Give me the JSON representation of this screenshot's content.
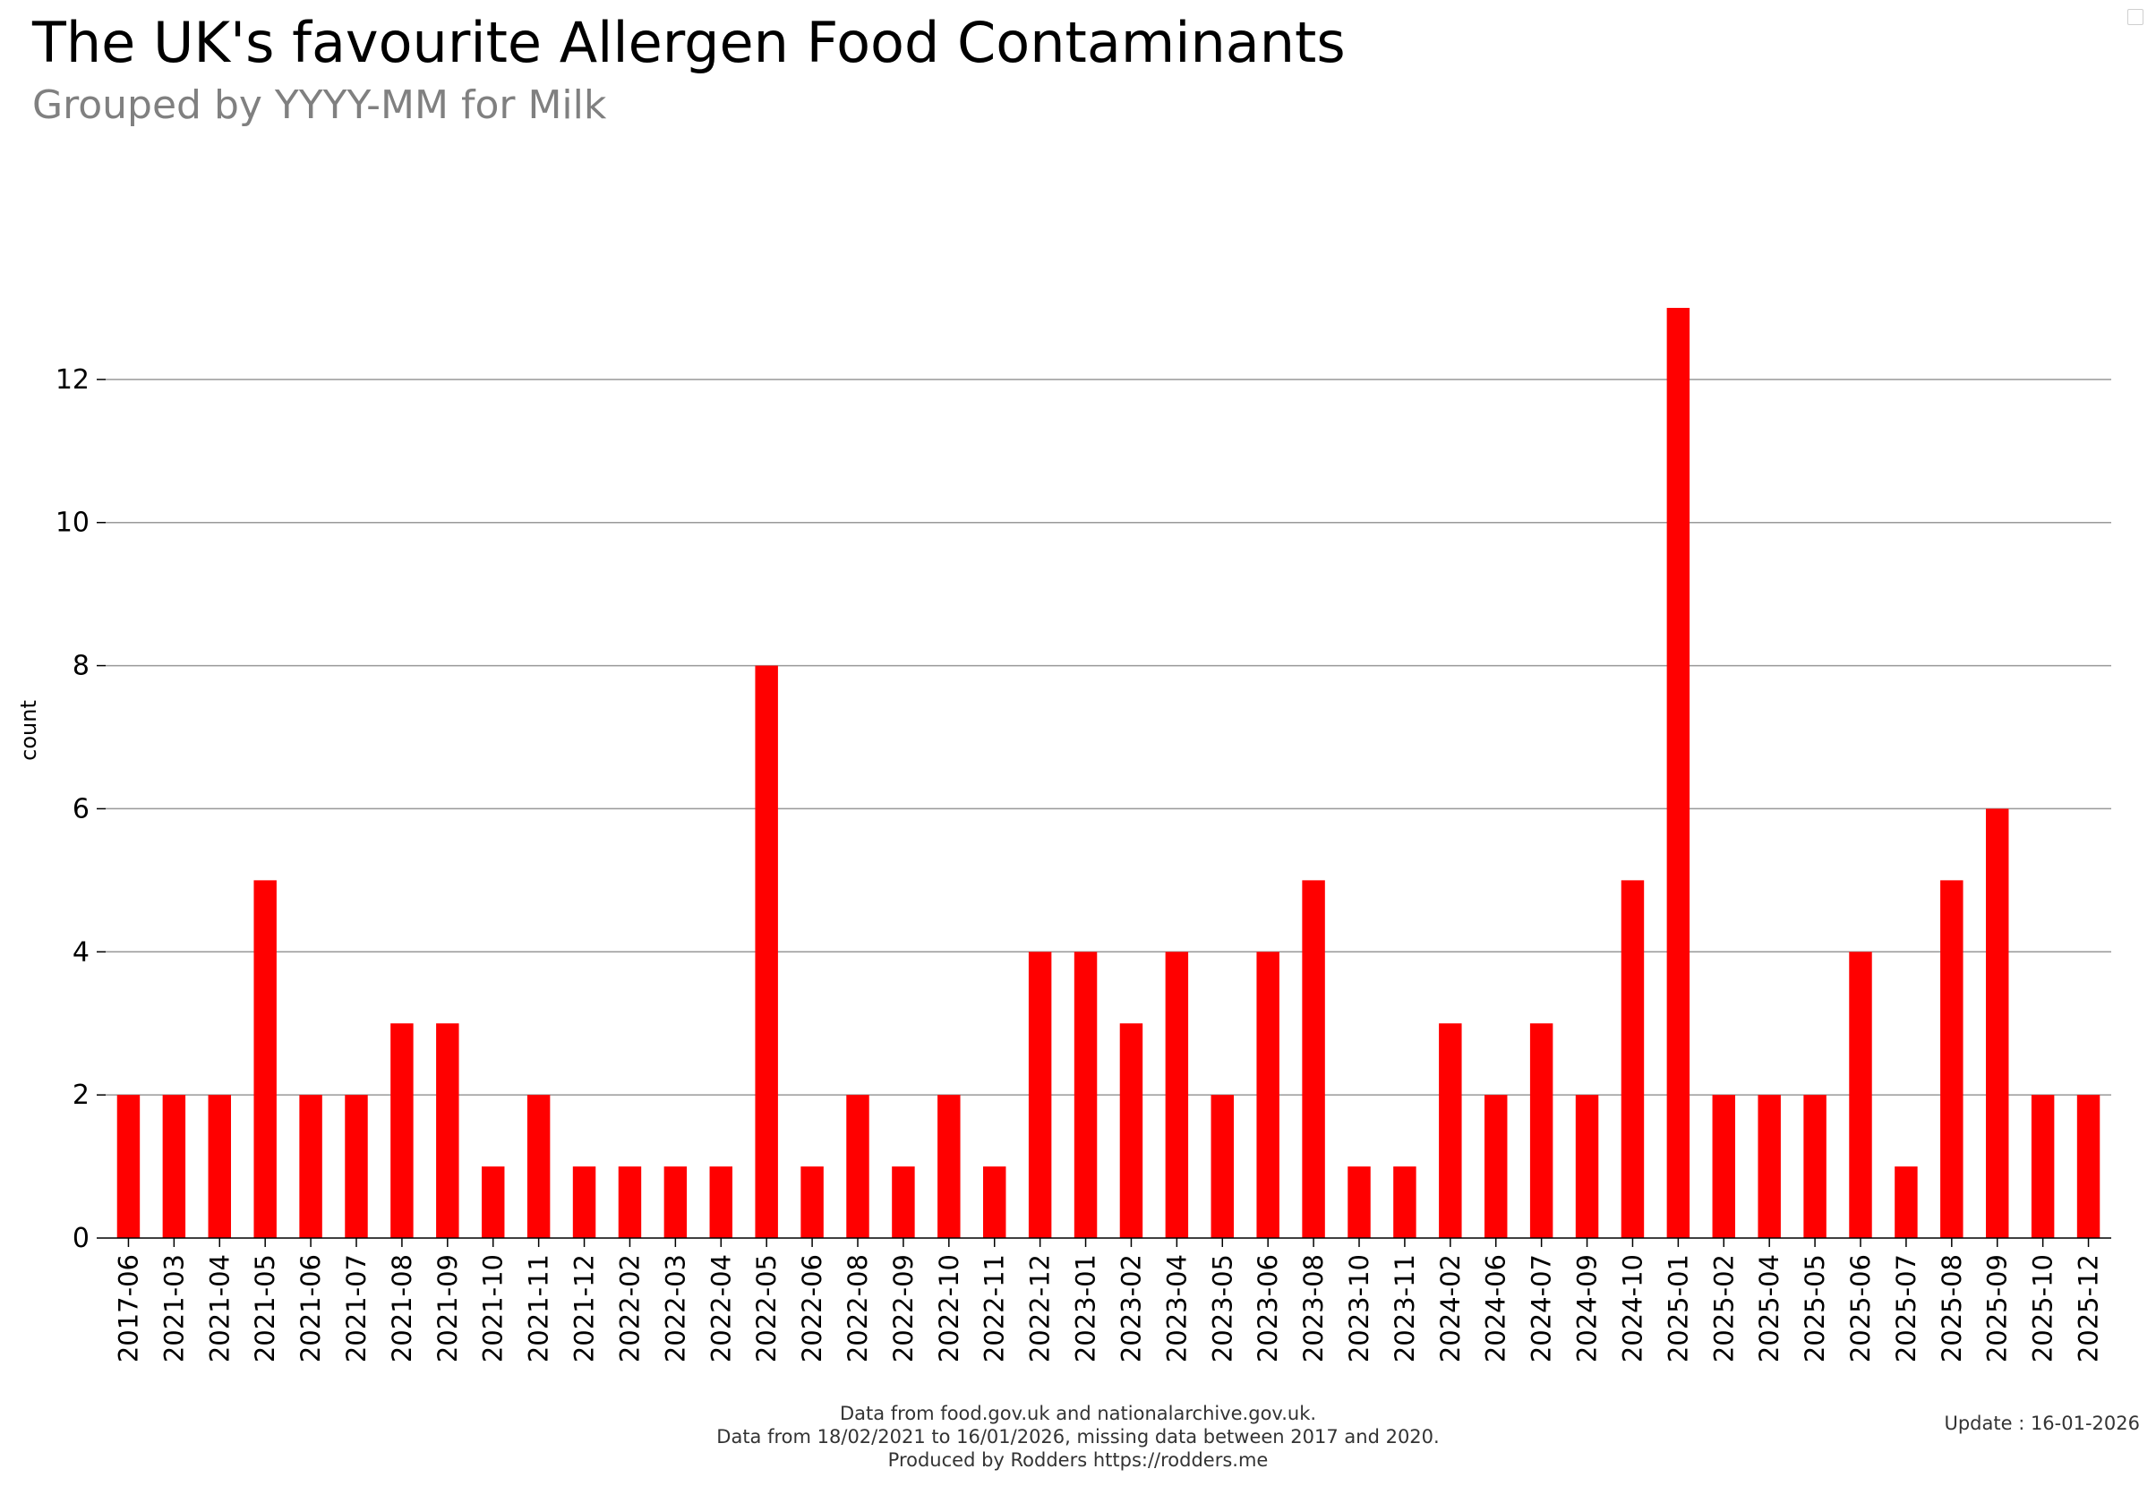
{
  "header": {
    "title": "The UK's favourite Allergen Food Contaminants",
    "subtitle": "Grouped by YYYY-MM for Milk"
  },
  "footer": {
    "line1": "Data from food.gov.uk and nationalarchive.gov.uk.",
    "line2": "Data from 18/02/2021 to 16/01/2026, missing data between 2017 and 2020.",
    "line3": "Produced by Rodders https://rodders.me",
    "update": "Update : 16-01-2026"
  },
  "colors": {
    "bar": "#ff0000",
    "grid": "#999999",
    "subtitle": "#808080"
  },
  "chart_data": {
    "type": "bar",
    "title": "The UK's favourite Allergen Food Contaminants",
    "subtitle": "Grouped by YYYY-MM for Milk",
    "xlabel": "",
    "ylabel": "count",
    "ylim": [
      0,
      13.8
    ],
    "yticks": [
      0,
      2,
      4,
      6,
      8,
      10,
      12
    ],
    "grid": true,
    "categories": [
      "2017-06",
      "2021-03",
      "2021-04",
      "2021-05",
      "2021-06",
      "2021-07",
      "2021-08",
      "2021-09",
      "2021-10",
      "2021-11",
      "2021-12",
      "2022-02",
      "2022-03",
      "2022-04",
      "2022-05",
      "2022-06",
      "2022-08",
      "2022-09",
      "2022-10",
      "2022-11",
      "2022-12",
      "2023-01",
      "2023-02",
      "2023-04",
      "2023-05",
      "2023-06",
      "2023-08",
      "2023-10",
      "2023-11",
      "2024-02",
      "2024-06",
      "2024-07",
      "2024-09",
      "2024-10",
      "2025-01",
      "2025-02",
      "2025-04",
      "2025-05",
      "2025-06",
      "2025-07",
      "2025-08",
      "2025-09",
      "2025-10",
      "2025-12"
    ],
    "values": [
      2,
      2,
      2,
      5,
      2,
      2,
      3,
      3,
      1,
      2,
      1,
      1,
      1,
      1,
      8,
      1,
      2,
      1,
      2,
      1,
      4,
      4,
      3,
      4,
      2,
      4,
      5,
      1,
      1,
      3,
      2,
      3,
      2,
      5,
      13,
      2,
      2,
      2,
      4,
      1,
      5,
      6,
      2,
      2
    ]
  }
}
